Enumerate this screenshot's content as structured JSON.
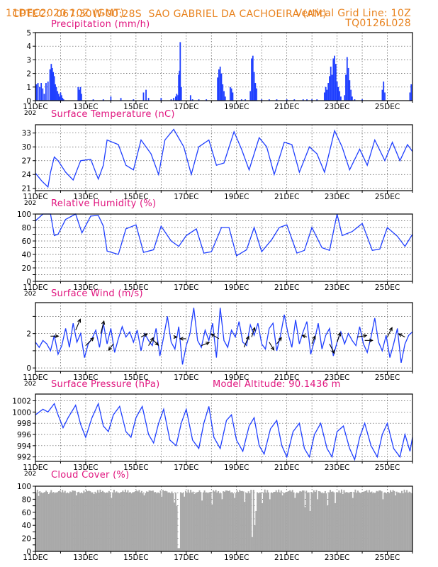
{
  "header": {
    "source": "CPTEC:",
    "coords": "067:30W-00:28S",
    "station": "SAO GABRIEL DA CACHOEIRA (AM)",
    "date": "11DEC2020 10Z (GMT)",
    "grid_note": "Vertical Grid Line: 10Z",
    "code": "TQ0126L028"
  },
  "colors": {
    "header": "#e8821e",
    "title": "#e0157f",
    "series": "#1f3fff",
    "bars": "#1f3fff",
    "cloud": "#a9a9a9",
    "grid": "#555555"
  },
  "chart_data": [
    {
      "id": "precip",
      "type": "bar",
      "title": "Precipitation (mm/h)",
      "x_unit": "days since 11DEC 10Z",
      "xlim": [
        0,
        15
      ],
      "ylim": [
        0,
        5
      ],
      "yticks": [
        0,
        1,
        2,
        3,
        4,
        5
      ],
      "xticks": [
        "11DEC",
        "13DEC",
        "15DEC",
        "17DEC",
        "19DEC",
        "21DEC",
        "23DEC",
        "25DEC"
      ],
      "year_label": "202",
      "x": [
        0.04,
        0.1,
        0.17,
        0.23,
        0.29,
        0.35,
        0.42,
        0.5,
        0.58,
        0.63,
        0.67,
        0.71,
        0.75,
        0.79,
        0.83,
        0.88,
        0.92,
        0.96,
        1.0,
        1.04,
        1.08,
        1.12,
        1.7,
        1.75,
        1.79,
        1.83,
        2.3,
        2.7,
        3.0,
        3.4,
        3.9,
        4.3,
        4.4,
        4.5,
        5.0,
        5.4,
        5.5,
        5.58,
        5.62,
        5.67,
        5.7,
        5.73,
        5.76,
        5.8,
        6.17,
        6.25,
        6.5,
        6.8,
        7.25,
        7.3,
        7.35,
        7.4,
        7.45,
        7.5,
        7.55,
        7.75,
        7.8,
        7.85,
        8.2,
        8.35,
        8.55,
        8.6,
        8.65,
        8.7,
        8.75,
        8.8,
        9.0,
        9.3,
        9.6,
        10.0,
        10.3,
        10.65,
        10.8,
        11.0,
        11.2,
        11.5,
        11.55,
        11.6,
        11.65,
        11.7,
        11.75,
        11.8,
        11.85,
        11.9,
        11.95,
        12.0,
        12.05,
        12.1,
        12.15,
        12.3,
        12.35,
        12.4,
        12.45,
        12.5,
        12.55,
        12.6,
        12.7,
        13.0,
        13.8,
        13.85,
        13.9,
        14.9,
        14.95
      ],
      "values": [
        1.2,
        1.3,
        1.0,
        1.3,
        0.9,
        0.5,
        1.3,
        1.4,
        2.3,
        2.7,
        2.4,
        2.1,
        1.8,
        1.2,
        1.0,
        0.7,
        0.5,
        0.3,
        0.6,
        0.4,
        0.2,
        0.1,
        1.0,
        0.8,
        1.0,
        0.5,
        0.1,
        0.1,
        0.3,
        0.2,
        0.1,
        0.6,
        0.8,
        0.2,
        0.2,
        0.1,
        0.2,
        0.3,
        0.5,
        0.4,
        1.9,
        2.2,
        4.3,
        1.0,
        0.4,
        0.1,
        0.1,
        0.1,
        1.7,
        2.3,
        2.5,
        2.0,
        1.2,
        0.7,
        0.3,
        1.0,
        0.9,
        0.6,
        0.1,
        0.1,
        0.7,
        3.1,
        3.3,
        2.1,
        1.3,
        0.9,
        0.1,
        0.1,
        0.1,
        0.1,
        0.1,
        0.1,
        0.1,
        0.1,
        0.1,
        0.6,
        1.0,
        0.8,
        1.3,
        1.8,
        2.5,
        1.9,
        3.1,
        3.3,
        2.7,
        1.4,
        1.0,
        0.7,
        0.3,
        0.4,
        1.9,
        3.2,
        2.4,
        1.5,
        0.8,
        0.3,
        0.1,
        0.1,
        0.8,
        1.4,
        0.6,
        0.6,
        1.2
      ]
    },
    {
      "id": "temp",
      "type": "line",
      "title": "Surface Temperature (nC)",
      "xlim": [
        0,
        15
      ],
      "ylim": [
        20.5,
        34.8
      ],
      "yticks": [
        21,
        24,
        27,
        30,
        33
      ],
      "xticks": [
        "11DEC",
        "13DEC",
        "15DEC",
        "17DEC",
        "19DEC",
        "21DEC",
        "23DEC",
        "25DEC"
      ],
      "year_label": "202",
      "x": [
        0,
        0.25,
        0.5,
        0.6,
        0.75,
        0.9,
        1.2,
        1.5,
        1.8,
        2.2,
        2.5,
        2.7,
        2.85,
        3.3,
        3.6,
        3.9,
        4.2,
        4.6,
        4.9,
        5.15,
        5.5,
        5.9,
        6.2,
        6.5,
        6.9,
        7.2,
        7.5,
        7.9,
        8.2,
        8.5,
        8.9,
        9.2,
        9.5,
        9.9,
        10.2,
        10.5,
        10.9,
        11.2,
        11.5,
        11.9,
        12.2,
        12.5,
        12.9,
        13.2,
        13.5,
        13.9,
        14.2,
        14.5,
        14.8,
        15.0
      ],
      "values": [
        24.3,
        22.6,
        21.3,
        24.5,
        27.8,
        27.0,
        24.5,
        22.8,
        27.0,
        27.3,
        23.0,
        26.0,
        31.5,
        30.5,
        26.0,
        25.0,
        31.5,
        28.5,
        24.0,
        31.5,
        33.8,
        30.0,
        24.0,
        30.0,
        31.5,
        26.0,
        26.5,
        33.3,
        29.5,
        25.0,
        32.0,
        30.0,
        24.0,
        31.0,
        30.5,
        24.5,
        30.0,
        28.5,
        24.5,
        33.5,
        30.0,
        25.0,
        29.5,
        26.0,
        31.5,
        27.0,
        31.0,
        27.0,
        30.5,
        29.0
      ]
    },
    {
      "id": "rh",
      "type": "line",
      "title": "Relative Humidity (%)",
      "xlim": [
        0,
        15
      ],
      "ylim": [
        0,
        100
      ],
      "yticks": [
        0,
        10,
        20,
        30,
        40,
        50,
        60,
        70,
        80,
        90,
        100
      ],
      "ytick_labels": [
        0,
        20,
        40,
        60,
        80,
        100
      ],
      "xticks": [
        "11DEC",
        "13DEC",
        "15DEC",
        "17DEC",
        "19DEC",
        "21DEC",
        "23DEC",
        "25DEC"
      ],
      "year_label": "202",
      "x": [
        0,
        0.3,
        0.6,
        0.75,
        0.9,
        1.2,
        1.6,
        1.85,
        2.2,
        2.5,
        2.7,
        2.85,
        3.3,
        3.6,
        4.0,
        4.3,
        4.7,
        5.0,
        5.4,
        5.7,
        6.0,
        6.4,
        6.7,
        7.0,
        7.4,
        7.7,
        8.0,
        8.4,
        8.7,
        9.0,
        9.4,
        9.7,
        10.0,
        10.4,
        10.7,
        11.0,
        11.4,
        11.7,
        12.0,
        12.2,
        12.6,
        13.0,
        13.4,
        13.7,
        14.0,
        14.4,
        14.7,
        15.0
      ],
      "values": [
        90,
        100,
        100,
        68,
        70,
        92,
        100,
        72,
        97,
        98,
        82,
        45,
        40,
        78,
        84,
        43,
        47,
        82,
        60,
        52,
        68,
        78,
        42,
        44,
        80,
        80,
        38,
        47,
        80,
        44,
        62,
        80,
        84,
        42,
        46,
        80,
        50,
        46,
        100,
        68,
        74,
        86,
        46,
        48,
        80,
        67,
        52,
        70
      ]
    },
    {
      "id": "wind",
      "type": "line",
      "title": "Surface Wind (m/s)",
      "xlim": [
        0,
        15
      ],
      "ylim": [
        -0.2,
        3.8
      ],
      "yticks": [
        0,
        1,
        2,
        3
      ],
      "ytick_labels": [
        0,
        2
      ],
      "xticks": [
        "11DEC",
        "13DEC",
        "15DEC",
        "17DEC",
        "19DEC",
        "21DEC",
        "23DEC",
        "25DEC"
      ],
      "year_label": "202",
      "x": [
        0,
        0.15,
        0.3,
        0.45,
        0.6,
        0.75,
        0.9,
        1.05,
        1.2,
        1.35,
        1.5,
        1.65,
        1.8,
        1.95,
        2.1,
        2.25,
        2.4,
        2.55,
        2.7,
        2.85,
        3.0,
        3.15,
        3.3,
        3.45,
        3.6,
        3.75,
        3.9,
        4.05,
        4.2,
        4.35,
        4.5,
        4.65,
        4.8,
        4.95,
        5.1,
        5.25,
        5.4,
        5.55,
        5.7,
        5.85,
        6.0,
        6.15,
        6.3,
        6.45,
        6.6,
        6.75,
        6.9,
        7.05,
        7.2,
        7.35,
        7.5,
        7.65,
        7.8,
        7.95,
        8.1,
        8.25,
        8.4,
        8.55,
        8.7,
        8.85,
        9.0,
        9.15,
        9.3,
        9.45,
        9.6,
        9.75,
        9.9,
        10.05,
        10.2,
        10.35,
        10.5,
        10.65,
        10.8,
        10.95,
        11.1,
        11.25,
        11.4,
        11.55,
        11.7,
        11.85,
        12.0,
        12.15,
        12.3,
        12.45,
        12.6,
        12.75,
        12.9,
        13.05,
        13.2,
        13.35,
        13.5,
        13.65,
        13.8,
        13.95,
        14.1,
        14.25,
        14.4,
        14.55,
        14.7,
        14.85,
        15.0
      ],
      "values": [
        1.5,
        1.2,
        1.6,
        1.4,
        1.0,
        1.9,
        0.8,
        1.3,
        2.3,
        1.2,
        2.6,
        1.5,
        2.0,
        0.6,
        1.4,
        1.7,
        2.2,
        1.2,
        2.6,
        1.4,
        2.3,
        0.9,
        1.7,
        2.4,
        1.8,
        2.1,
        1.5,
        2.2,
        1.0,
        2.0,
        1.6,
        1.3,
        2.3,
        0.7,
        1.8,
        3.0,
        1.5,
        1.1,
        2.4,
        0.2,
        1.3,
        2.0,
        3.5,
        1.6,
        1.2,
        2.2,
        1.6,
        2.6,
        0.6,
        3.5,
        1.6,
        1.2,
        2.2,
        1.8,
        2.7,
        1.5,
        1.3,
        2.5,
        1.9,
        2.6,
        1.4,
        1.1,
        2.3,
        2.6,
        1.0,
        1.9,
        3.1,
        2.0,
        1.2,
        2.8,
        1.4,
        2.1,
        2.7,
        0.8,
        1.6,
        2.6,
        1.1,
        1.9,
        2.3,
        0.7,
        1.5,
        2.1,
        1.4,
        2.0,
        1.6,
        1.3,
        2.4,
        1.4,
        0.9,
        1.8,
        2.9,
        1.5,
        1.0,
        1.9,
        0.6,
        1.4,
        2.3,
        0.3,
        1.4,
        1.9,
        2.1
      ],
      "vectors": [
        {
          "x": 0.6,
          "y": 1.85,
          "u": 0.5,
          "v": 0.0
        },
        {
          "x": 1.6,
          "y": 2.2,
          "u": 0.3,
          "v": 0.7
        },
        {
          "x": 2.0,
          "y": 1.3,
          "u": 0.5,
          "v": 0.5
        },
        {
          "x": 2.6,
          "y": 2.0,
          "u": 0.2,
          "v": 0.8
        },
        {
          "x": 3.1,
          "y": 1.4,
          "u": -0.3,
          "v": -0.4
        },
        {
          "x": 4.2,
          "y": 1.8,
          "u": 0.4,
          "v": 0.2
        },
        {
          "x": 4.5,
          "y": 1.3,
          "u": 0.3,
          "v": 0.5
        },
        {
          "x": 4.7,
          "y": 1.6,
          "u": 0.3,
          "v": -0.3
        },
        {
          "x": 5.5,
          "y": 1.8,
          "u": 0.2,
          "v": 0.0
        },
        {
          "x": 6.0,
          "y": 1.7,
          "u": -0.4,
          "v": 0.0
        },
        {
          "x": 6.6,
          "y": 1.3,
          "u": 0.5,
          "v": 0.2
        },
        {
          "x": 7.3,
          "y": 1.7,
          "u": -0.5,
          "v": 0.3
        },
        {
          "x": 8.3,
          "y": 1.2,
          "u": 0.3,
          "v": 0.7
        },
        {
          "x": 8.6,
          "y": 1.8,
          "u": 0.2,
          "v": 0.6
        },
        {
          "x": 9.3,
          "y": 1.5,
          "u": 0.3,
          "v": -0.5
        },
        {
          "x": 9.6,
          "y": 1.4,
          "u": 0.3,
          "v": 0.4
        },
        {
          "x": 10.8,
          "y": 1.8,
          "u": -0.3,
          "v": 0.1
        },
        {
          "x": 11.0,
          "y": 1.4,
          "u": 0.2,
          "v": 0.5
        },
        {
          "x": 11.7,
          "y": 1.4,
          "u": 0.3,
          "v": -0.6
        },
        {
          "x": 12.0,
          "y": 1.5,
          "u": 0.2,
          "v": 0.6
        },
        {
          "x": 12.8,
          "y": 1.8,
          "u": 0.6,
          "v": 0.1
        },
        {
          "x": 13.1,
          "y": 1.6,
          "u": 0.5,
          "v": 0.0
        },
        {
          "x": 14.0,
          "y": 1.8,
          "u": 0.3,
          "v": 0.6
        },
        {
          "x": 14.7,
          "y": 1.8,
          "u": -0.4,
          "v": 0.2
        }
      ]
    },
    {
      "id": "pres",
      "type": "line",
      "title": "Surface Pressure (hPa)",
      "subtitle": "Model Altitude: 90.1436 m",
      "xlim": [
        0,
        15
      ],
      "ylim": [
        991.2,
        1003.2
      ],
      "yticks": [
        992,
        994,
        996,
        998,
        1000,
        1002
      ],
      "xticks": [
        "11DEC",
        "13DEC",
        "15DEC",
        "17DEC",
        "19DEC",
        "21DEC",
        "23DEC",
        "25DEC"
      ],
      "year_label": "202",
      "x": [
        0,
        0.3,
        0.5,
        0.75,
        0.9,
        1.1,
        1.3,
        1.6,
        1.8,
        2.0,
        2.25,
        2.5,
        2.7,
        2.9,
        3.1,
        3.35,
        3.6,
        3.8,
        4.0,
        4.25,
        4.5,
        4.7,
        4.9,
        5.1,
        5.35,
        5.6,
        5.8,
        6.0,
        6.25,
        6.5,
        6.7,
        6.9,
        7.1,
        7.35,
        7.6,
        7.8,
        8.0,
        8.25,
        8.5,
        8.7,
        8.9,
        9.1,
        9.35,
        9.6,
        9.8,
        10.0,
        10.25,
        10.5,
        10.7,
        10.9,
        11.1,
        11.35,
        11.6,
        11.8,
        12.0,
        12.25,
        12.5,
        12.7,
        12.9,
        13.1,
        13.35,
        13.6,
        13.8,
        14.0,
        14.25,
        14.5,
        14.7,
        14.9,
        15.0
      ],
      "values": [
        999.5,
        1000.5,
        1000.0,
        1001.5,
        999.5,
        997.2,
        999.0,
        1001.2,
        997.8,
        995.5,
        999.0,
        1001.5,
        997.5,
        996.5,
        999.5,
        1001.0,
        996.5,
        995.5,
        999.0,
        1001.0,
        996.0,
        994.5,
        998.0,
        1000.5,
        995.0,
        994.0,
        998.0,
        1000.5,
        995.0,
        993.5,
        998.0,
        1001.0,
        995.5,
        993.5,
        998.5,
        999.5,
        995.0,
        993.0,
        997.5,
        999.0,
        994.0,
        992.5,
        997.0,
        998.5,
        994.0,
        992.0,
        996.5,
        998.0,
        993.5,
        992.0,
        996.0,
        998.0,
        993.5,
        992.0,
        996.5,
        997.5,
        993.5,
        991.5,
        995.5,
        998.0,
        994.0,
        992.0,
        996.0,
        998.0,
        993.5,
        992.0,
        996.0,
        993.0,
        995.5
      ]
    },
    {
      "id": "cloud",
      "type": "bar",
      "title": "Cloud Cover (%)",
      "xlim": [
        0,
        15
      ],
      "ylim": [
        0,
        100
      ],
      "yticks": [
        0,
        10,
        20,
        30,
        40,
        50,
        60,
        70,
        80,
        90,
        100
      ],
      "ytick_labels": [
        0,
        20,
        40,
        60,
        80,
        100
      ],
      "xticks": [
        "11DEC",
        "13DEC",
        "15DEC",
        "17DEC",
        "19DEC",
        "21DEC",
        "23DEC",
        "25DEC"
      ],
      "step": 0.05,
      "base": 93,
      "dips": [
        [
          0.1,
          85
        ],
        [
          0.5,
          88
        ],
        [
          1.0,
          90
        ],
        [
          1.6,
          86
        ],
        [
          2.3,
          88
        ],
        [
          3.0,
          82
        ],
        [
          3.6,
          90
        ],
        [
          4.3,
          86
        ],
        [
          5.0,
          84
        ],
        [
          5.5,
          75
        ],
        [
          5.6,
          70
        ],
        [
          5.65,
          30
        ],
        [
          5.68,
          5
        ],
        [
          5.9,
          84
        ],
        [
          6.3,
          88
        ],
        [
          6.6,
          78
        ],
        [
          7.0,
          72
        ],
        [
          7.4,
          80
        ],
        [
          7.9,
          82
        ],
        [
          8.3,
          76
        ],
        [
          8.6,
          22
        ],
        [
          8.7,
          40
        ],
        [
          8.75,
          62
        ],
        [
          9.0,
          74
        ],
        [
          9.3,
          80
        ],
        [
          9.8,
          86
        ],
        [
          10.3,
          82
        ],
        [
          10.7,
          68
        ],
        [
          10.9,
          62
        ],
        [
          11.2,
          80
        ],
        [
          11.6,
          70
        ],
        [
          11.9,
          74
        ],
        [
          12.2,
          88
        ],
        [
          12.6,
          82
        ],
        [
          13.2,
          90
        ],
        [
          13.8,
          80
        ],
        [
          14.3,
          86
        ],
        [
          14.8,
          90
        ]
      ]
    }
  ]
}
